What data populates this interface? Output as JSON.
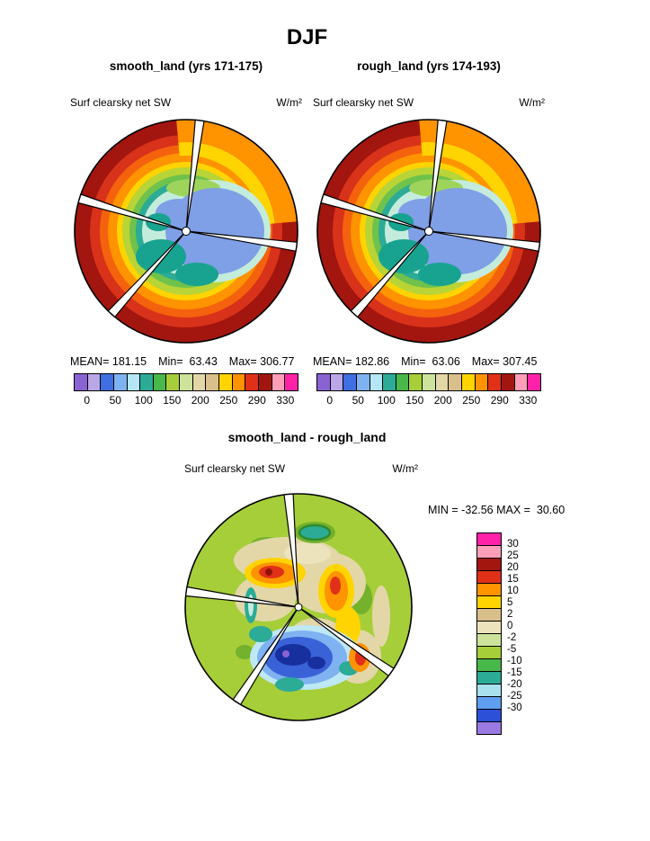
{
  "title": "DJF",
  "panels": [
    {
      "subtitle": "smooth_land (yrs 171-175)",
      "field_label": "Surf clearsky net SW",
      "units": "W/m²",
      "stats": {
        "mean": "MEAN= 181.15",
        "min": "Min=  63.43",
        "max": "Max= 306.77"
      }
    },
    {
      "subtitle": "rough_land (yrs 174-193)",
      "field_label": "Surf clearsky net SW",
      "units": "W/m²",
      "stats": {
        "mean": "MEAN= 182.86",
        "min": "Min=  63.06",
        "max": "Max= 307.45"
      }
    }
  ],
  "colorbar": {
    "ticks": [
      "0",
      "50",
      "100",
      "150",
      "200",
      "250",
      "290",
      "330"
    ],
    "colors": [
      "#8a63d2",
      "#b9a7e8",
      "#3f6fe0",
      "#7fb2f0",
      "#b5e6f5",
      "#2cab96",
      "#49b84a",
      "#a6ce39",
      "#cde39b",
      "#e3d7a8",
      "#d9bf8c",
      "#ffd400",
      "#ff9300",
      "#e03018",
      "#a3150f",
      "#ff9eb8",
      "#ff22a8"
    ]
  },
  "diff": {
    "title": "smooth_land - rough_land",
    "field_label": "Surf clearsky net SW",
    "units": "W/m²",
    "minmax": "MIN = -32.56 MAX =  30.60",
    "colorbar": {
      "ticks": [
        "30",
        "25",
        "20",
        "15",
        "10",
        "5",
        "2",
        "0",
        "-2",
        "-5",
        "-10",
        "-15",
        "-20",
        "-25",
        "-30"
      ],
      "colors": [
        "#ff22a8",
        "#ff9eb8",
        "#a3150f",
        "#e03018",
        "#ff9300",
        "#ffd400",
        "#d9bf8c",
        "#ece3bd",
        "#cde39b",
        "#a6ce39",
        "#49b84a",
        "#2cab96",
        "#a8e0ee",
        "#5f9ef0",
        "#2c50d8",
        "#9a7ae0"
      ]
    }
  },
  "chart_data": [
    {
      "type": "heatmap",
      "projection": "polar-stereographic",
      "title": "smooth_land (yrs 171-175)",
      "field": "Surf clearsky net SW",
      "units": "W/m²",
      "season": "DJF",
      "mean": 181.15,
      "min": 63.43,
      "max": 306.77,
      "colorbar_ticks": [
        0,
        50,
        100,
        150,
        200,
        250,
        290,
        330
      ],
      "legend_position": "bottom"
    },
    {
      "type": "heatmap",
      "projection": "polar-stereographic",
      "title": "rough_land (yrs 174-193)",
      "field": "Surf clearsky net SW",
      "units": "W/m²",
      "season": "DJF",
      "mean": 182.86,
      "min": 63.06,
      "max": 307.45,
      "colorbar_ticks": [
        0,
        50,
        100,
        150,
        200,
        250,
        290,
        330
      ],
      "legend_position": "bottom"
    },
    {
      "type": "heatmap",
      "projection": "polar-stereographic",
      "title": "smooth_land - rough_land",
      "field": "Surf clearsky net SW",
      "units": "W/m²",
      "season": "DJF",
      "min": -32.56,
      "max": 30.6,
      "colorbar_ticks": [
        30,
        25,
        20,
        15,
        10,
        5,
        2,
        0,
        -2,
        -5,
        -10,
        -15,
        -20,
        -25,
        -30
      ],
      "legend_position": "right"
    }
  ]
}
